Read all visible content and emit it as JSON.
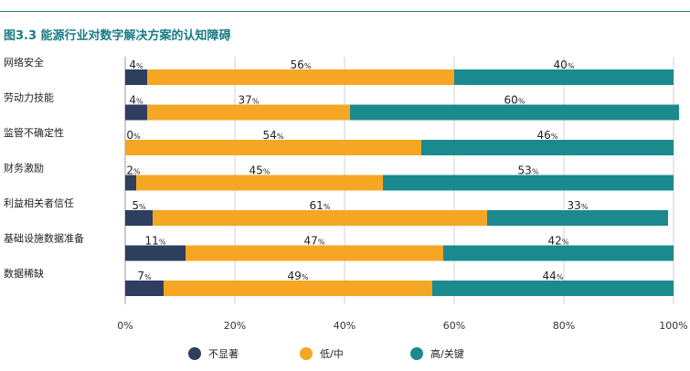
{
  "chart_data": {
    "type": "bar",
    "orientation": "horizontal",
    "stacked": true,
    "title": "图3.3 能源行业对数字解决方案的认知障碍",
    "categories": [
      "网络安全",
      "劳动力技能",
      "监管不确定性",
      "财务激励",
      "利益相关者信任",
      "基础设施数据准备",
      "数据稀缺"
    ],
    "series": [
      {
        "name": "不显著",
        "color": "#2d3e5e",
        "values": [
          4,
          4,
          0,
          2,
          5,
          11,
          7
        ]
      },
      {
        "name": "低/中",
        "color": "#f5a623",
        "values": [
          56,
          37,
          54,
          45,
          61,
          47,
          49
        ]
      },
      {
        "name": "高/关键",
        "color": "#1a8a8e",
        "values": [
          40,
          60,
          46,
          53,
          33,
          42,
          44
        ]
      }
    ],
    "value_suffix": "%",
    "xlim": [
      0,
      100
    ],
    "x_ticks": [
      "0%",
      "20%",
      "40%",
      "60%",
      "80%",
      "100%"
    ],
    "grid": true,
    "legend_position": "bottom"
  }
}
